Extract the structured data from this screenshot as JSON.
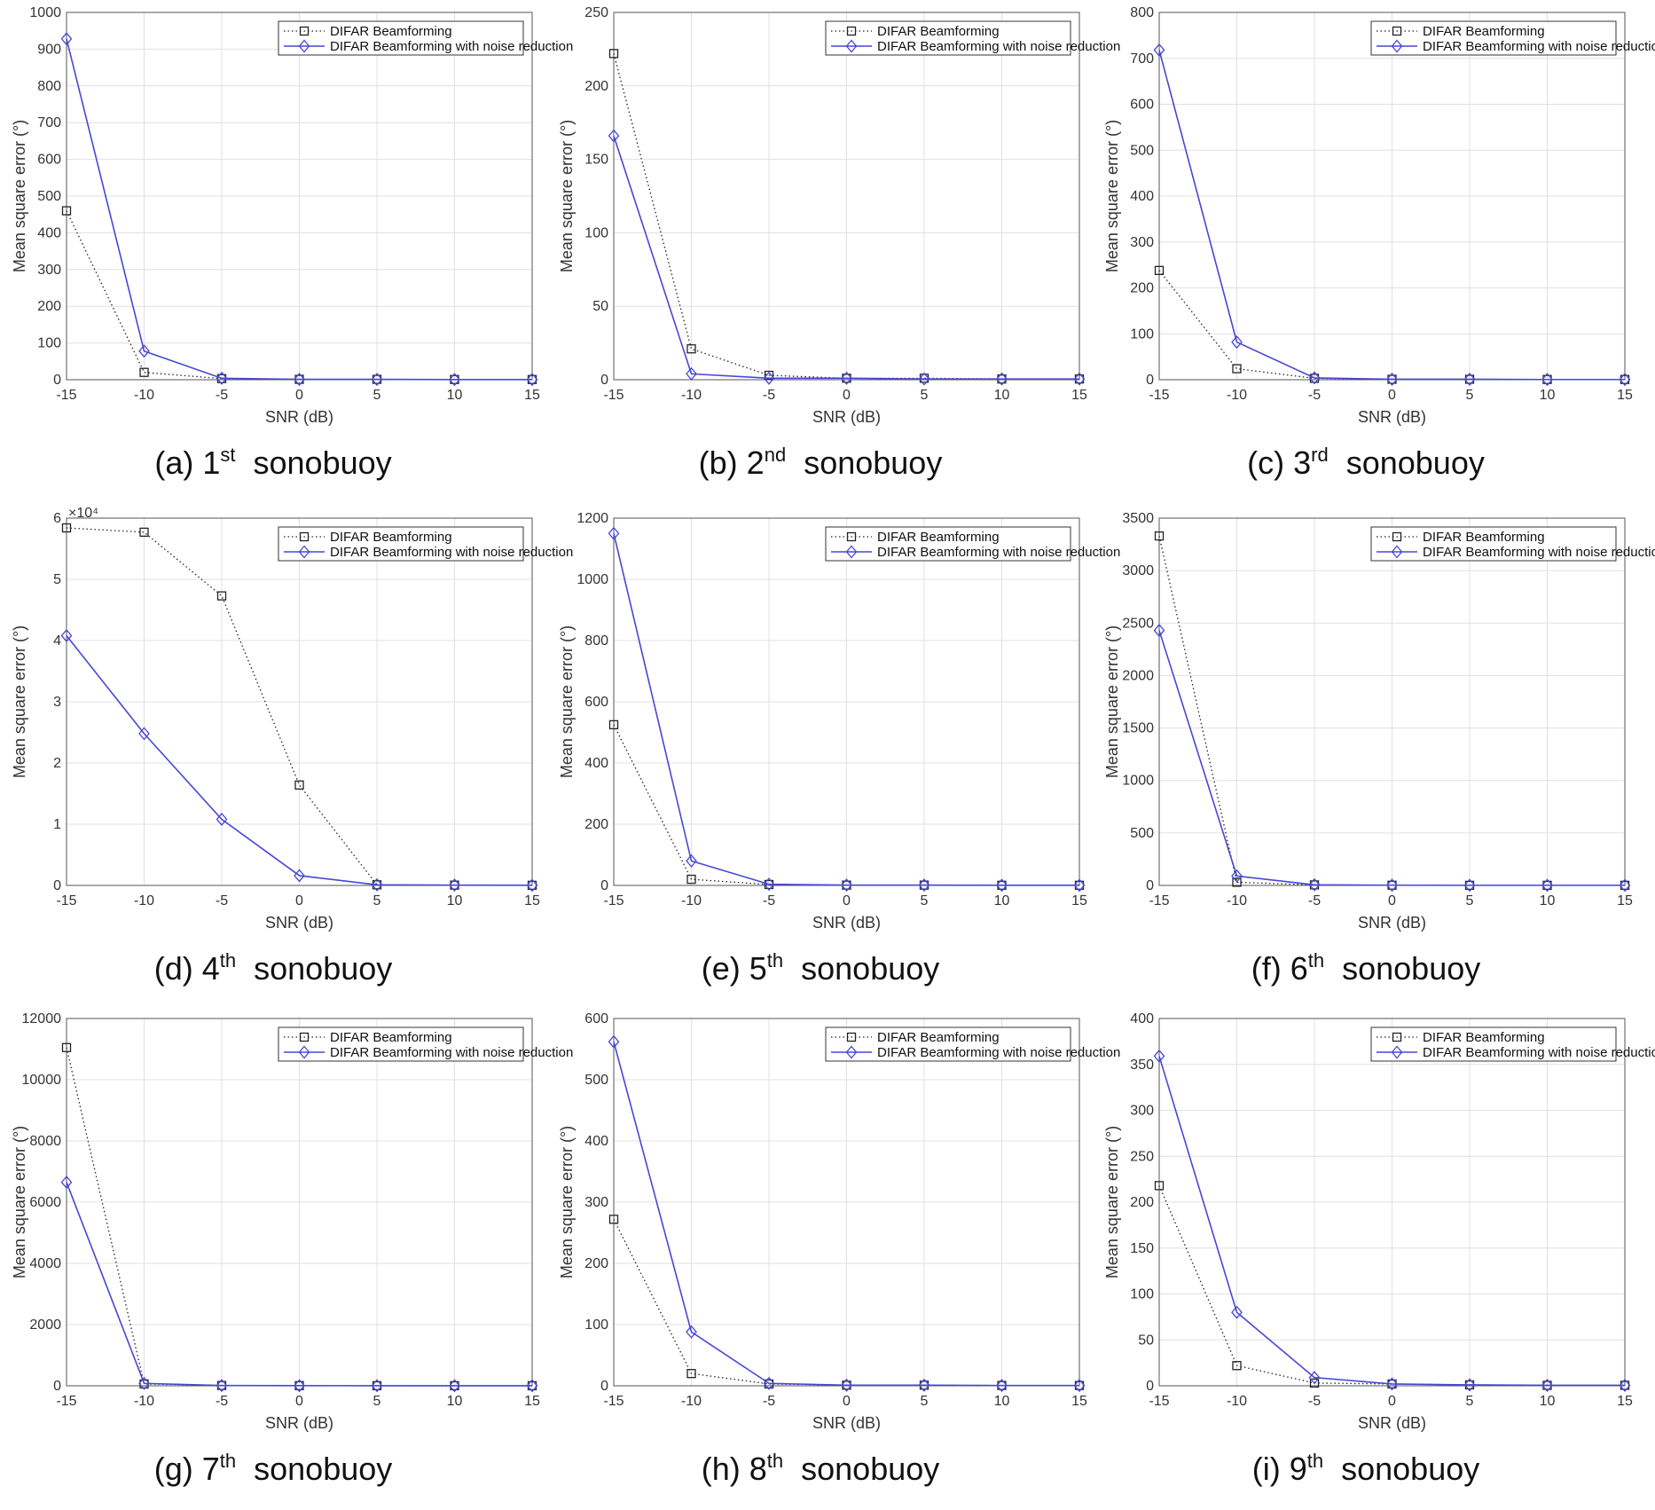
{
  "chart_data": [
    {
      "type": "line",
      "caption_prefix": "(a)",
      "caption_ordinal": "1",
      "caption_suffix": "st",
      "caption_word": "sonobuoy",
      "xlabel": "SNR (dB)",
      "ylabel": "Mean square error (°)",
      "exponent_label": "",
      "x": [
        -15,
        -10,
        -5,
        0,
        5,
        10,
        15
      ],
      "xlim": [
        -15,
        15
      ],
      "ylim": [
        0,
        1000
      ],
      "yticks": [
        0,
        100,
        200,
        300,
        400,
        500,
        600,
        700,
        800,
        900,
        1000
      ],
      "ytick_labels": [
        "0",
        "100",
        "200",
        "300",
        "400",
        "500",
        "600",
        "700",
        "800",
        "900",
        "1000"
      ],
      "xtick_labels": [
        "-15",
        "-10",
        "-5",
        "0",
        "5",
        "10",
        "15"
      ],
      "legend_position": "top-right",
      "series": [
        {
          "name": "DIFAR Beamforming",
          "values": [
            460,
            20,
            3,
            1,
            1,
            0.5,
            0.5
          ]
        },
        {
          "name": "DIFAR Beamforming with noise reduction",
          "values": [
            928,
            78,
            4,
            1,
            1,
            0.5,
            0.5
          ]
        }
      ]
    },
    {
      "type": "line",
      "caption_prefix": "(b)",
      "caption_ordinal": "2",
      "caption_suffix": "nd",
      "caption_word": "sonobuoy",
      "xlabel": "SNR (dB)",
      "ylabel": "Mean square error (°)",
      "exponent_label": "",
      "x": [
        -15,
        -10,
        -5,
        0,
        5,
        10,
        15
      ],
      "xlim": [
        -15,
        15
      ],
      "ylim": [
        0,
        250
      ],
      "yticks": [
        0,
        50,
        100,
        150,
        200,
        250
      ],
      "ytick_labels": [
        "0",
        "50",
        "100",
        "150",
        "200",
        "250"
      ],
      "xtick_labels": [
        "-15",
        "-10",
        "-5",
        "0",
        "5",
        "10",
        "15"
      ],
      "legend_position": "top-right",
      "series": [
        {
          "name": "DIFAR Beamforming",
          "values": [
            222,
            21,
            3,
            1,
            1,
            0.5,
            0.5
          ]
        },
        {
          "name": "DIFAR Beamforming with noise reduction",
          "values": [
            166,
            4,
            1,
            1,
            0.5,
            0.5,
            0.5
          ]
        }
      ]
    },
    {
      "type": "line",
      "caption_prefix": "(c)",
      "caption_ordinal": "3",
      "caption_suffix": "rd",
      "caption_word": "sonobuoy",
      "xlabel": "SNR (dB)",
      "ylabel": "Mean square error (°)",
      "exponent_label": "",
      "x": [
        -15,
        -10,
        -5,
        0,
        5,
        10,
        15
      ],
      "xlim": [
        -15,
        15
      ],
      "ylim": [
        0,
        800
      ],
      "yticks": [
        0,
        100,
        200,
        300,
        400,
        500,
        600,
        700,
        800
      ],
      "ytick_labels": [
        "0",
        "100",
        "200",
        "300",
        "400",
        "500",
        "600",
        "700",
        "800"
      ],
      "xtick_labels": [
        "-15",
        "-10",
        "-5",
        "0",
        "5",
        "10",
        "15"
      ],
      "legend_position": "top-right",
      "series": [
        {
          "name": "DIFAR Beamforming",
          "values": [
            238,
            24,
            3,
            1,
            1,
            0.5,
            0.5
          ]
        },
        {
          "name": "DIFAR Beamforming with noise reduction",
          "values": [
            718,
            82,
            4,
            1,
            1,
            0.5,
            0.5
          ]
        }
      ]
    },
    {
      "type": "line",
      "caption_prefix": "(d)",
      "caption_ordinal": "4",
      "caption_suffix": "th",
      "caption_word": "sonobuoy",
      "xlabel": "SNR (dB)",
      "ylabel": "Mean square error (°)",
      "exponent_label": "×10⁴",
      "x": [
        -15,
        -10,
        -5,
        0,
        5,
        10,
        15
      ],
      "xlim": [
        -15,
        15
      ],
      "ylim": [
        0,
        60000
      ],
      "yticks": [
        0,
        10000,
        20000,
        30000,
        40000,
        50000,
        60000
      ],
      "ytick_labels": [
        "0",
        "1",
        "2",
        "3",
        "4",
        "5",
        "6"
      ],
      "xtick_labels": [
        "-15",
        "-10",
        "-5",
        "0",
        "5",
        "10",
        "15"
      ],
      "legend_position": "top-right",
      "series": [
        {
          "name": "DIFAR Beamforming",
          "values": [
            58400,
            57700,
            47300,
            16400,
            100,
            50,
            20
          ]
        },
        {
          "name": "DIFAR Beamforming with noise reduction",
          "values": [
            40800,
            24800,
            10800,
            1600,
            100,
            50,
            20
          ]
        }
      ]
    },
    {
      "type": "line",
      "caption_prefix": "(e)",
      "caption_ordinal": "5",
      "caption_suffix": "th",
      "caption_word": "sonobuoy",
      "xlabel": "SNR (dB)",
      "ylabel": "Mean square error (°)",
      "exponent_label": "",
      "x": [
        -15,
        -10,
        -5,
        0,
        5,
        10,
        15
      ],
      "xlim": [
        -15,
        15
      ],
      "ylim": [
        0,
        1200
      ],
      "yticks": [
        0,
        200,
        400,
        600,
        800,
        1000,
        1200
      ],
      "ytick_labels": [
        "0",
        "200",
        "400",
        "600",
        "800",
        "1000",
        "1200"
      ],
      "xtick_labels": [
        "-15",
        "-10",
        "-5",
        "0",
        "5",
        "10",
        "15"
      ],
      "legend_position": "top-right",
      "series": [
        {
          "name": "DIFAR Beamforming",
          "values": [
            525,
            20,
            3,
            1,
            1,
            0.5,
            0.5
          ]
        },
        {
          "name": "DIFAR Beamforming with noise reduction",
          "values": [
            1150,
            80,
            4,
            1,
            1,
            0.5,
            0.5
          ]
        }
      ]
    },
    {
      "type": "line",
      "caption_prefix": "(f)",
      "caption_ordinal": "6",
      "caption_suffix": "th",
      "caption_word": "sonobuoy",
      "xlabel": "SNR (dB)",
      "ylabel": "Mean square error (°)",
      "exponent_label": "",
      "x": [
        -15,
        -10,
        -5,
        0,
        5,
        10,
        15
      ],
      "xlim": [
        -15,
        15
      ],
      "ylim": [
        0,
        3500
      ],
      "yticks": [
        0,
        500,
        1000,
        1500,
        2000,
        2500,
        3000,
        3500
      ],
      "ytick_labels": [
        "0",
        "500",
        "1000",
        "1500",
        "2000",
        "2500",
        "3000",
        "3500"
      ],
      "xtick_labels": [
        "-15",
        "-10",
        "-5",
        "0",
        "5",
        "10",
        "15"
      ],
      "legend_position": "top-right",
      "series": [
        {
          "name": "DIFAR Beamforming",
          "values": [
            3330,
            30,
            5,
            2,
            1,
            1,
            1
          ]
        },
        {
          "name": "DIFAR Beamforming with noise reduction",
          "values": [
            2430,
            90,
            6,
            2,
            1,
            1,
            1
          ]
        }
      ]
    },
    {
      "type": "line",
      "caption_prefix": "(g)",
      "caption_ordinal": "7",
      "caption_suffix": "th",
      "caption_word": "sonobuoy",
      "xlabel": "SNR (dB)",
      "ylabel": "Mean square error (°)",
      "exponent_label": "",
      "x": [
        -15,
        -10,
        -5,
        0,
        5,
        10,
        15
      ],
      "xlim": [
        -15,
        15
      ],
      "ylim": [
        0,
        12000
      ],
      "yticks": [
        0,
        2000,
        4000,
        6000,
        8000,
        10000,
        12000
      ],
      "ytick_labels": [
        "0",
        "2000",
        "4000",
        "6000",
        "8000",
        "10000",
        "12000"
      ],
      "xtick_labels": [
        "-15",
        "-10",
        "-5",
        "0",
        "5",
        "10",
        "15"
      ],
      "legend_position": "top-right",
      "series": [
        {
          "name": "DIFAR Beamforming",
          "values": [
            11050,
            60,
            10,
            5,
            3,
            2,
            2
          ]
        },
        {
          "name": "DIFAR Beamforming with noise reduction",
          "values": [
            6650,
            80,
            10,
            5,
            3,
            2,
            2
          ]
        }
      ]
    },
    {
      "type": "line",
      "caption_prefix": "(h)",
      "caption_ordinal": "8",
      "caption_suffix": "th",
      "caption_word": "sonobuoy",
      "xlabel": "SNR (dB)",
      "ylabel": "Mean square error (°)",
      "exponent_label": "",
      "x": [
        -15,
        -10,
        -5,
        0,
        5,
        10,
        15
      ],
      "xlim": [
        -15,
        15
      ],
      "ylim": [
        0,
        600
      ],
      "yticks": [
        0,
        100,
        200,
        300,
        400,
        500,
        600
      ],
      "ytick_labels": [
        "0",
        "100",
        "200",
        "300",
        "400",
        "500",
        "600"
      ],
      "xtick_labels": [
        "-15",
        "-10",
        "-5",
        "0",
        "5",
        "10",
        "15"
      ],
      "legend_position": "top-right",
      "series": [
        {
          "name": "DIFAR Beamforming",
          "values": [
            272,
            20,
            3,
            1,
            1,
            0.5,
            0.5
          ]
        },
        {
          "name": "DIFAR Beamforming with noise reduction",
          "values": [
            562,
            88,
            4,
            1,
            1,
            0.5,
            0.5
          ]
        }
      ]
    },
    {
      "type": "line",
      "caption_prefix": "(i)",
      "caption_ordinal": "9",
      "caption_suffix": "th",
      "caption_word": "sonobuoy",
      "xlabel": "SNR (dB)",
      "ylabel": "Mean square error (°)",
      "exponent_label": "",
      "x": [
        -15,
        -10,
        -5,
        0,
        5,
        10,
        15
      ],
      "xlim": [
        -15,
        15
      ],
      "ylim": [
        0,
        400
      ],
      "yticks": [
        0,
        50,
        100,
        150,
        200,
        250,
        300,
        350,
        400
      ],
      "ytick_labels": [
        "0",
        "50",
        "100",
        "150",
        "200",
        "250",
        "300",
        "350",
        "400"
      ],
      "xtick_labels": [
        "-15",
        "-10",
        "-5",
        "0",
        "5",
        "10",
        "15"
      ],
      "legend_position": "top-right",
      "series": [
        {
          "name": "DIFAR Beamforming",
          "values": [
            218,
            22,
            3,
            2,
            1,
            0.5,
            0.5
          ]
        },
        {
          "name": "DIFAR Beamforming with noise reduction",
          "values": [
            359,
            80,
            9,
            2,
            1,
            0.5,
            0.5
          ]
        }
      ]
    }
  ],
  "colors": {
    "baseline": "#222222",
    "noise_reduction": "#4747d6",
    "grid": "#e0e0e0",
    "axis": "#555555"
  }
}
